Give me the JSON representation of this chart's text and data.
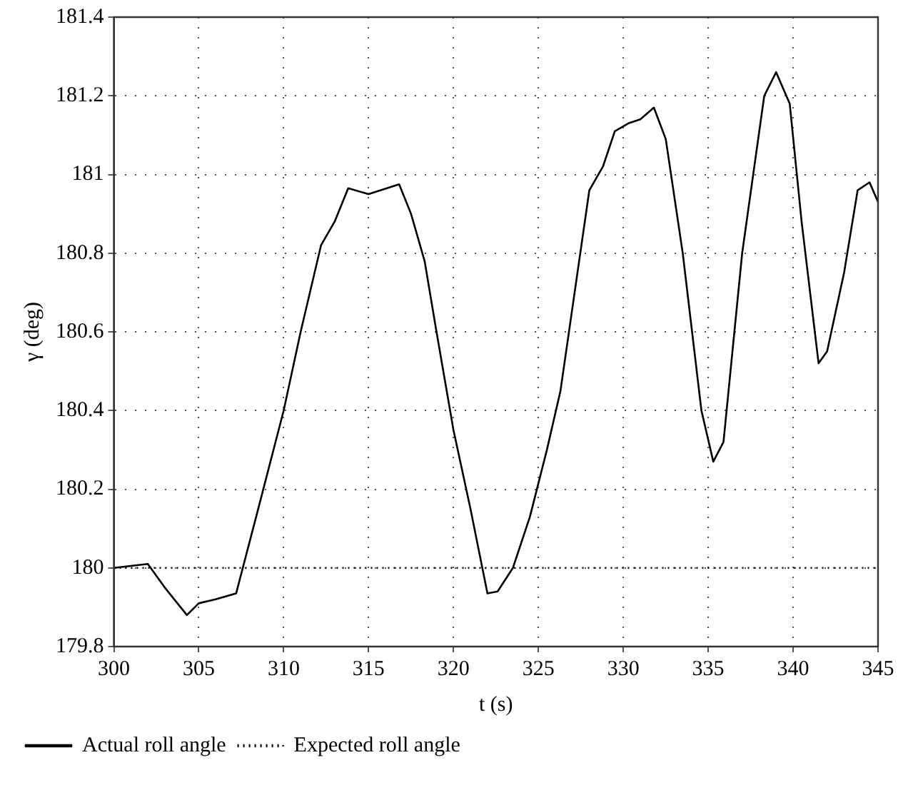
{
  "chart_data": {
    "type": "line",
    "xlabel": "t (s)",
    "ylabel": "γ (deg)",
    "xlim": [
      300,
      345
    ],
    "xticks": [
      300,
      305,
      310,
      315,
      320,
      325,
      330,
      335,
      340,
      345
    ],
    "ylim": [
      179.8,
      181.4
    ],
    "yticks": [
      179.8,
      180,
      180.2,
      180.4,
      180.6,
      180.8,
      181,
      181.2,
      181.4
    ],
    "grid": true,
    "legend": "bottom left",
    "marker": "none",
    "series": [
      {
        "name": "Actual roll angle",
        "color": "#000000",
        "line_style": "solid",
        "x": [
          300,
          301,
          302,
          303,
          304.3,
          305,
          306,
          307.2,
          308.5,
          310,
          311,
          312.2,
          313,
          313.8,
          315,
          316.8,
          317.5,
          318.3,
          319,
          320,
          321,
          322,
          322.6,
          323.5,
          324.5,
          325.5,
          326.3,
          327,
          328,
          328.8,
          329.5,
          330.3,
          331,
          331.8,
          332.5,
          333.5,
          334.6,
          335.3,
          335.9,
          337,
          338.3,
          339,
          339.8,
          340.5,
          341.5,
          342,
          343,
          343.8,
          344.5,
          345
        ],
        "values": [
          180.0,
          180.005,
          180.01,
          179.95,
          179.88,
          179.91,
          179.92,
          179.935,
          180.15,
          180.4,
          180.6,
          180.82,
          180.88,
          180.965,
          180.95,
          180.975,
          180.9,
          180.78,
          180.6,
          180.35,
          180.15,
          179.935,
          179.94,
          180.0,
          180.13,
          180.3,
          180.45,
          180.66,
          180.96,
          181.02,
          181.11,
          181.13,
          181.14,
          181.17,
          181.09,
          180.8,
          180.4,
          180.27,
          180.32,
          180.8,
          181.2,
          181.26,
          181.18,
          180.88,
          180.52,
          180.55,
          180.75,
          180.96,
          180.98,
          180.93
        ]
      },
      {
        "name": "Expected roll angle",
        "color": "#000000",
        "line_style": "dotted",
        "x": [
          300,
          345
        ],
        "values": [
          180,
          180
        ]
      }
    ]
  }
}
